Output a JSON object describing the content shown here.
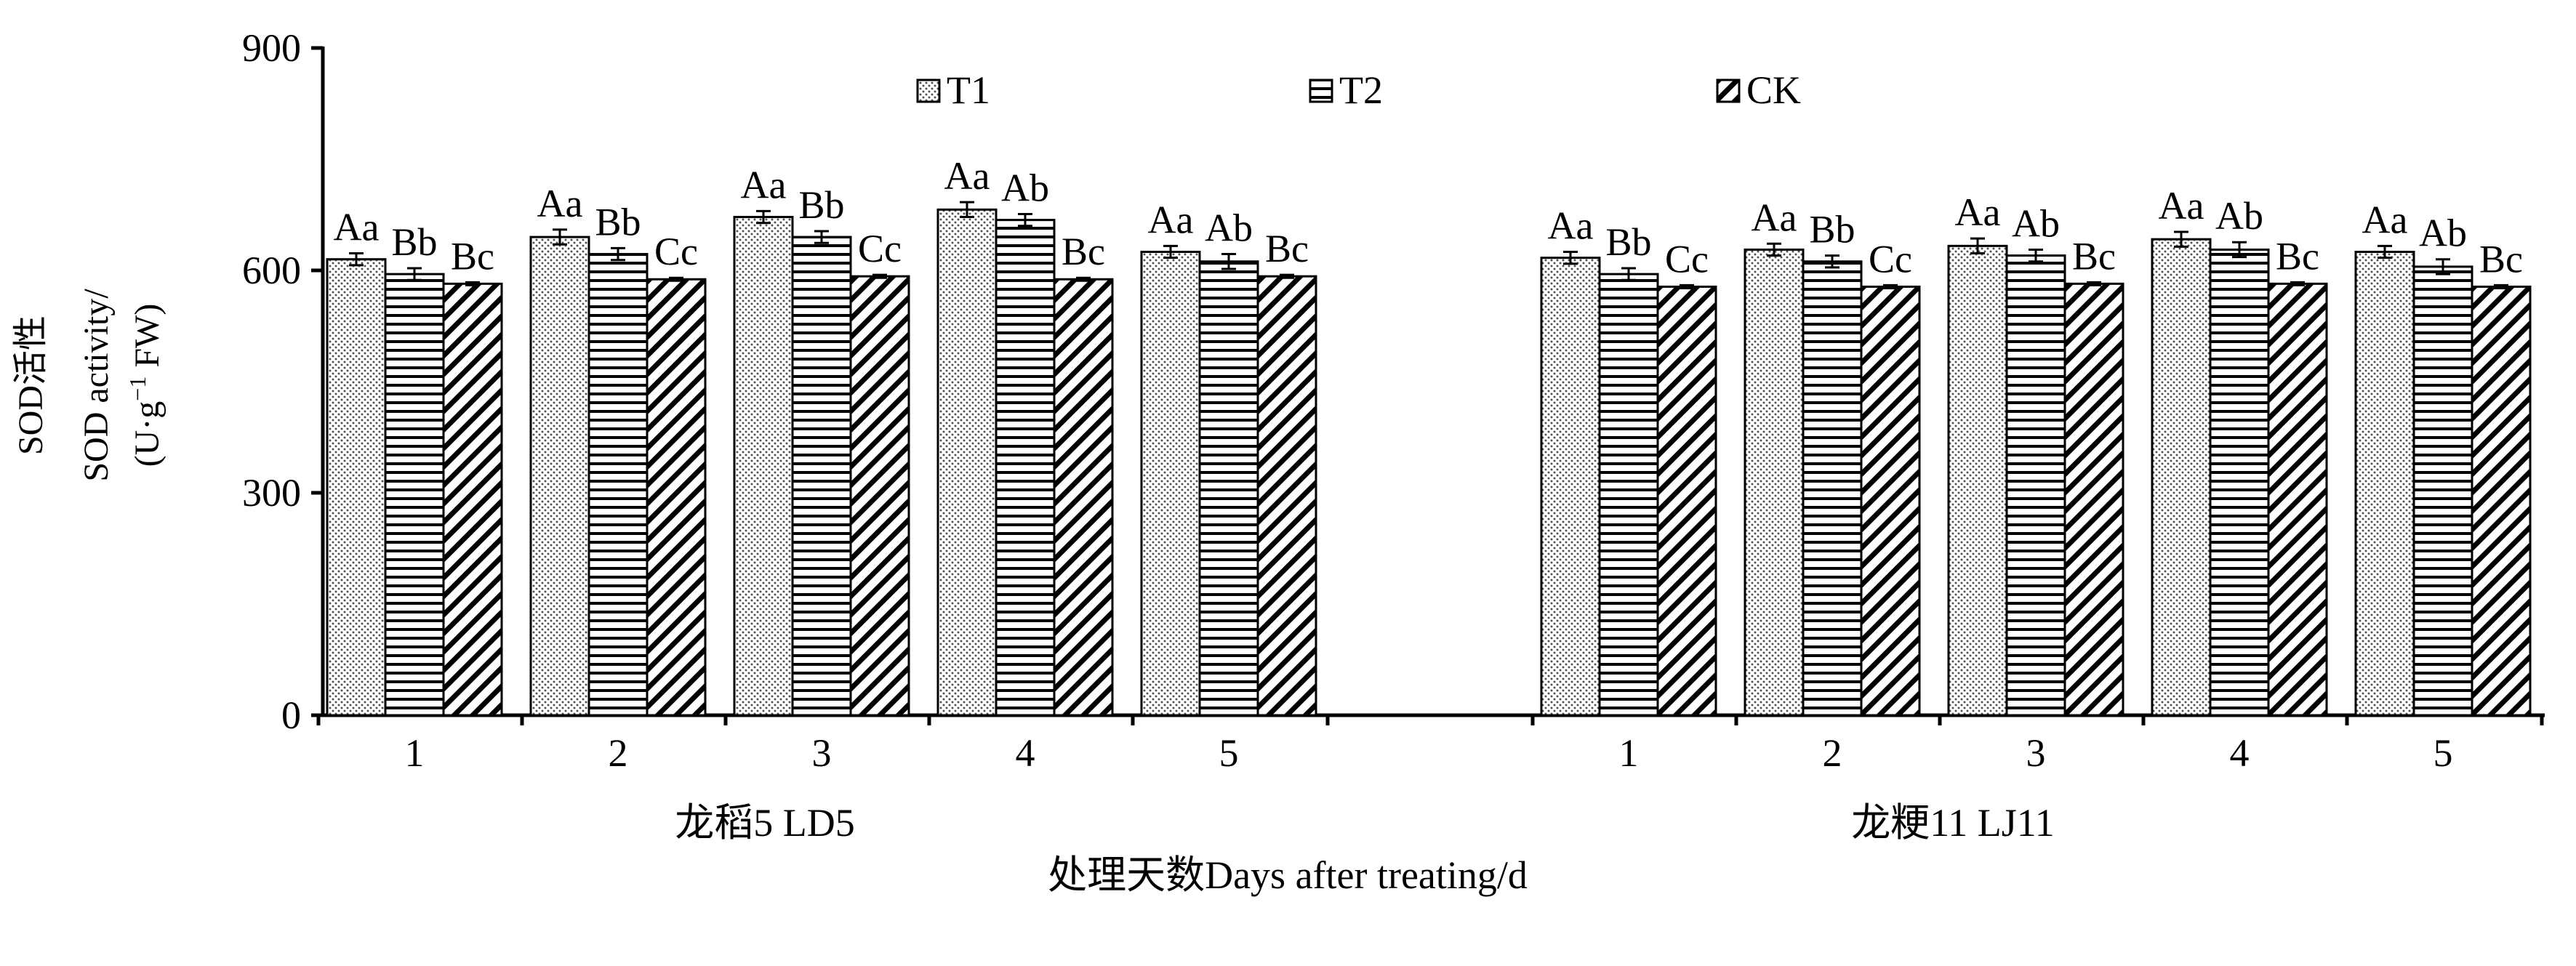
{
  "chart_data": {
    "type": "bar",
    "title": "",
    "ylabel_lines": [
      "SOD活性",
      "SOD activity/"
    ],
    "ylabel_unit": {
      "pre": "(U·g",
      "sup": "−1",
      "post": " FW)"
    },
    "xlabel": "处理天数Days after treating/d",
    "ylim": [
      0,
      900
    ],
    "y_ticks": [
      0,
      300,
      600,
      900
    ],
    "legend_position": "top-center",
    "series": [
      {
        "name": "T1",
        "pattern": "dots"
      },
      {
        "name": "T2",
        "pattern": "horizontal-lines"
      },
      {
        "name": "CK",
        "pattern": "diagonal-lines"
      }
    ],
    "groups": [
      {
        "name": "龙稻5 LD5",
        "categories": [
          "1",
          "2",
          "3",
          "4",
          "5"
        ],
        "values": [
          [
            615,
            645,
            672,
            682,
            625
          ],
          [
            595,
            622,
            645,
            668,
            612
          ],
          [
            582,
            588,
            592,
            588,
            592
          ]
        ],
        "errors": [
          [
            8,
            10,
            8,
            10,
            8
          ],
          [
            8,
            8,
            8,
            8,
            10
          ],
          [
            2,
            2,
            2,
            2,
            2
          ]
        ],
        "labels": [
          [
            "Aa",
            "Aa",
            "Aa",
            "Aa",
            "Aa"
          ],
          [
            "Bb",
            "Bb",
            "Bb",
            "Ab",
            "Ab"
          ],
          [
            "Bc",
            "Cc",
            "Cc",
            "Bc",
            "Bc"
          ]
        ]
      },
      {
        "name": "龙粳11 LJ11",
        "categories": [
          "1",
          "2",
          "3",
          "4",
          "5"
        ],
        "values": [
          [
            617,
            628,
            633,
            642,
            625
          ],
          [
            595,
            612,
            620,
            628,
            605
          ],
          [
            578,
            578,
            582,
            582,
            578
          ]
        ],
        "errors": [
          [
            8,
            8,
            10,
            10,
            8
          ],
          [
            8,
            8,
            8,
            10,
            10
          ],
          [
            2,
            2,
            2,
            2,
            2
          ]
        ],
        "labels": [
          [
            "Aa",
            "Aa",
            "Aa",
            "Aa",
            "Aa"
          ],
          [
            "Bb",
            "Bb",
            "Ab",
            "Ab",
            "Ab"
          ],
          [
            "Cc",
            "Cc",
            "Bc",
            "Bc",
            "Bc"
          ]
        ]
      }
    ]
  }
}
